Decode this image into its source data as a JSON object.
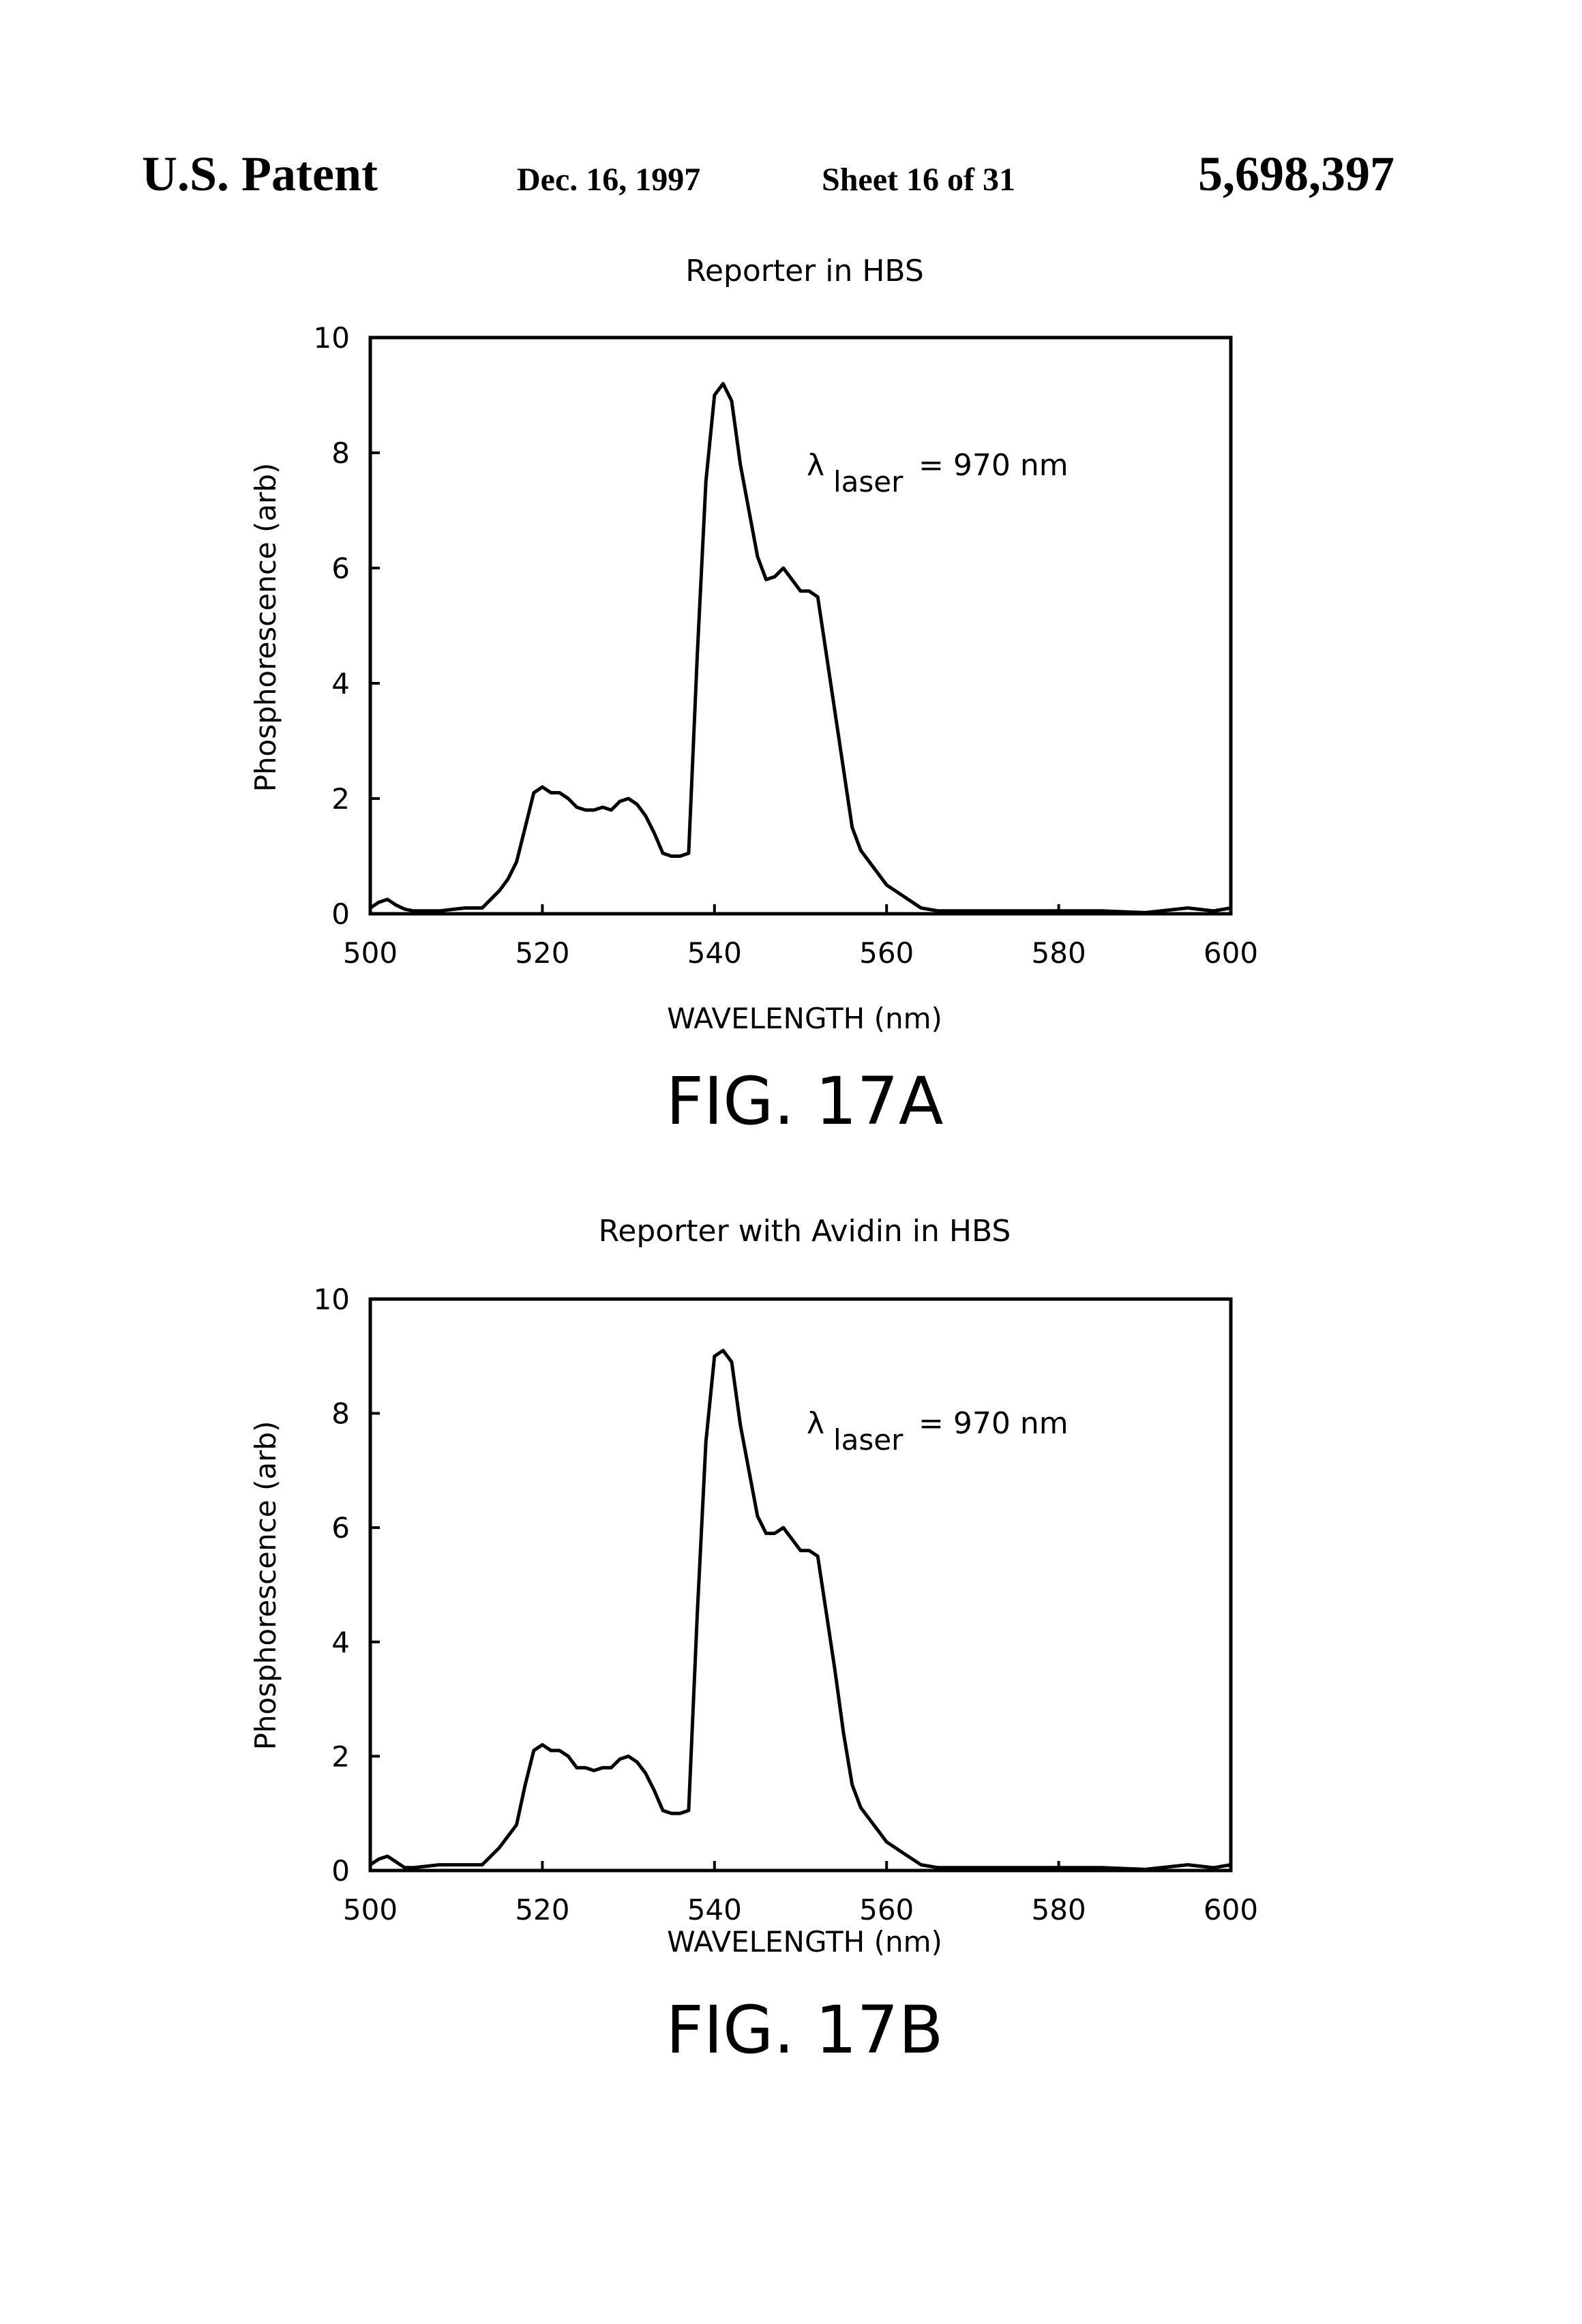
{
  "header": {
    "title": "U.S. Patent",
    "date": "Dec. 16, 1997",
    "sheet": "Sheet 16 of 31",
    "number": "5,698,397"
  },
  "chart_data": [
    {
      "type": "line",
      "figure_label": "FIG. 17A",
      "title": "Reporter in HBS",
      "xlabel": "WAVELENGTH (nm)",
      "ylabel": "Phosphorescence (arb)",
      "xlim": [
        500,
        600
      ],
      "ylim": [
        0,
        10
      ],
      "xticks": [
        "500",
        "520",
        "540",
        "560",
        "580",
        "600"
      ],
      "yticks": [
        "0",
        "2",
        "4",
        "6",
        "8",
        "10"
      ],
      "grid": false,
      "annotation": {
        "symbol": "λ",
        "subscript": "laser",
        "text": "= 970 nm"
      },
      "series": [
        {
          "x": [
            500,
            501,
            502,
            503,
            504,
            505,
            508,
            511,
            513,
            515,
            516,
            517,
            518,
            519,
            520,
            521,
            522,
            523,
            524,
            525,
            526,
            527,
            528,
            529,
            530,
            531,
            532,
            533,
            534,
            535,
            536,
            537,
            538,
            539,
            540,
            541,
            542,
            543,
            544,
            545,
            546,
            547,
            548,
            549,
            550,
            551,
            552,
            553,
            554,
            555,
            556,
            557,
            558,
            559,
            560,
            562,
            564,
            566,
            570,
            575,
            580,
            585,
            590,
            595,
            598,
            600
          ],
          "y": [
            0.1,
            0.2,
            0.25,
            0.15,
            0.08,
            0.05,
            0.05,
            0.1,
            0.1,
            0.4,
            0.6,
            0.9,
            1.5,
            2.1,
            2.2,
            2.1,
            2.1,
            2.0,
            1.85,
            1.8,
            1.8,
            1.85,
            1.8,
            1.95,
            2.0,
            1.9,
            1.7,
            1.4,
            1.05,
            1.0,
            1.0,
            1.05,
            4.5,
            7.5,
            9.0,
            9.2,
            8.9,
            7.8,
            7.0,
            6.2,
            5.8,
            5.85,
            6.0,
            5.8,
            5.6,
            5.6,
            5.5,
            4.5,
            3.5,
            2.5,
            1.5,
            1.1,
            0.9,
            0.7,
            0.5,
            0.3,
            0.1,
            0.05,
            0.05,
            0.05,
            0.05,
            0.05,
            0.02,
            0.1,
            0.05,
            0.1
          ]
        }
      ]
    },
    {
      "type": "line",
      "figure_label": "FIG. 17B",
      "title": "Reporter with Avidin in HBS",
      "xlabel": "WAVELENGTH (nm)",
      "ylabel": "Phosphorescence (arb)",
      "xlim": [
        500,
        600
      ],
      "ylim": [
        0,
        10
      ],
      "xticks": [
        "500",
        "520",
        "540",
        "560",
        "580",
        "600"
      ],
      "yticks": [
        "0",
        "2",
        "4",
        "6",
        "8",
        "10"
      ],
      "grid": false,
      "annotation": {
        "symbol": "λ",
        "subscript": "laser",
        "text": "= 970 nm"
      },
      "series": [
        {
          "x": [
            500,
            501,
            502,
            503,
            504,
            505,
            508,
            511,
            513,
            515,
            516,
            517,
            518,
            519,
            520,
            521,
            522,
            523,
            524,
            525,
            526,
            527,
            528,
            529,
            530,
            531,
            532,
            533,
            534,
            535,
            536,
            537,
            538,
            539,
            540,
            541,
            542,
            543,
            544,
            545,
            546,
            547,
            548,
            549,
            550,
            551,
            552,
            553,
            554,
            555,
            556,
            557,
            558,
            559,
            560,
            562,
            564,
            566,
            570,
            575,
            580,
            585,
            590,
            595,
            598,
            600
          ],
          "y": [
            0.1,
            0.2,
            0.25,
            0.15,
            0.05,
            0.05,
            0.1,
            0.1,
            0.1,
            0.4,
            0.6,
            0.8,
            1.5,
            2.1,
            2.2,
            2.1,
            2.1,
            2.0,
            1.8,
            1.8,
            1.75,
            1.8,
            1.8,
            1.95,
            2.0,
            1.9,
            1.7,
            1.4,
            1.05,
            1.0,
            1.0,
            1.05,
            4.5,
            7.5,
            9.0,
            9.1,
            8.9,
            7.8,
            7.0,
            6.2,
            5.9,
            5.9,
            6.0,
            5.8,
            5.6,
            5.6,
            5.5,
            4.5,
            3.5,
            2.4,
            1.5,
            1.1,
            0.9,
            0.7,
            0.5,
            0.3,
            0.1,
            0.05,
            0.05,
            0.05,
            0.05,
            0.05,
            0.02,
            0.1,
            0.05,
            0.1
          ]
        }
      ]
    }
  ]
}
